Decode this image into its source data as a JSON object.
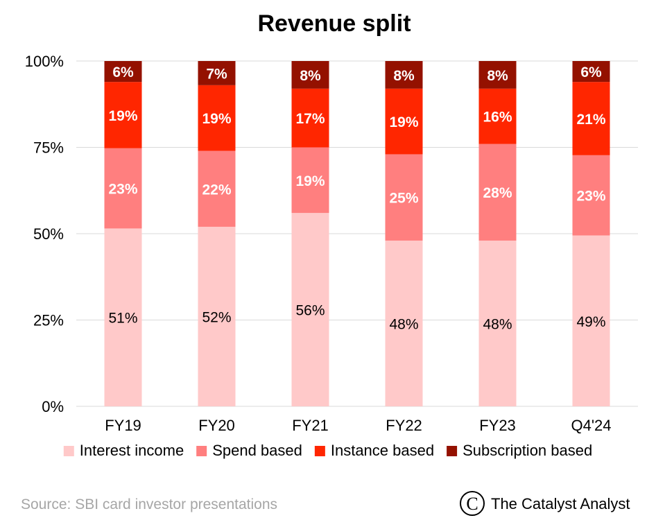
{
  "chart_data": {
    "type": "bar",
    "stacked": true,
    "title": "Revenue split",
    "categories": [
      "FY19",
      "FY20",
      "FY21",
      "FY22",
      "FY23",
      "Q4'24"
    ],
    "y_ticks": [
      "0%",
      "25%",
      "50%",
      "75%",
      "100%"
    ],
    "ylim": [
      0,
      100
    ],
    "grid": true,
    "legend_position": "bottom",
    "series": [
      {
        "name": "Interest income",
        "color": "#ffc9c9",
        "label_color": "#000000",
        "values": [
          51,
          52,
          56,
          48,
          48,
          49
        ],
        "labels": [
          "51%",
          "52%",
          "56%",
          "48%",
          "48%",
          "49%"
        ]
      },
      {
        "name": "Spend based",
        "color": "#ff7f7f",
        "label_color": "#ffffff",
        "values": [
          23,
          22,
          19,
          25,
          28,
          23
        ],
        "labels": [
          "23%",
          "22%",
          "19%",
          "25%",
          "28%",
          "23%"
        ]
      },
      {
        "name": "Instance based",
        "color": "#ff2600",
        "label_color": "#ffffff",
        "values": [
          19,
          19,
          17,
          19,
          16,
          21
        ],
        "labels": [
          "19%",
          "19%",
          "17%",
          "19%",
          "16%",
          "21%"
        ]
      },
      {
        "name": "Subscription based",
        "color": "#941100",
        "label_color": "#ffffff",
        "values": [
          6,
          7,
          8,
          8,
          8,
          6
        ],
        "labels": [
          "6%",
          "7%",
          "8%",
          "8%",
          "8%",
          "6%"
        ]
      }
    ]
  },
  "footer": {
    "source": "Source: SBI card investor presentations",
    "brand_symbol": "C",
    "brand_name": "The Catalyst Analyst"
  }
}
